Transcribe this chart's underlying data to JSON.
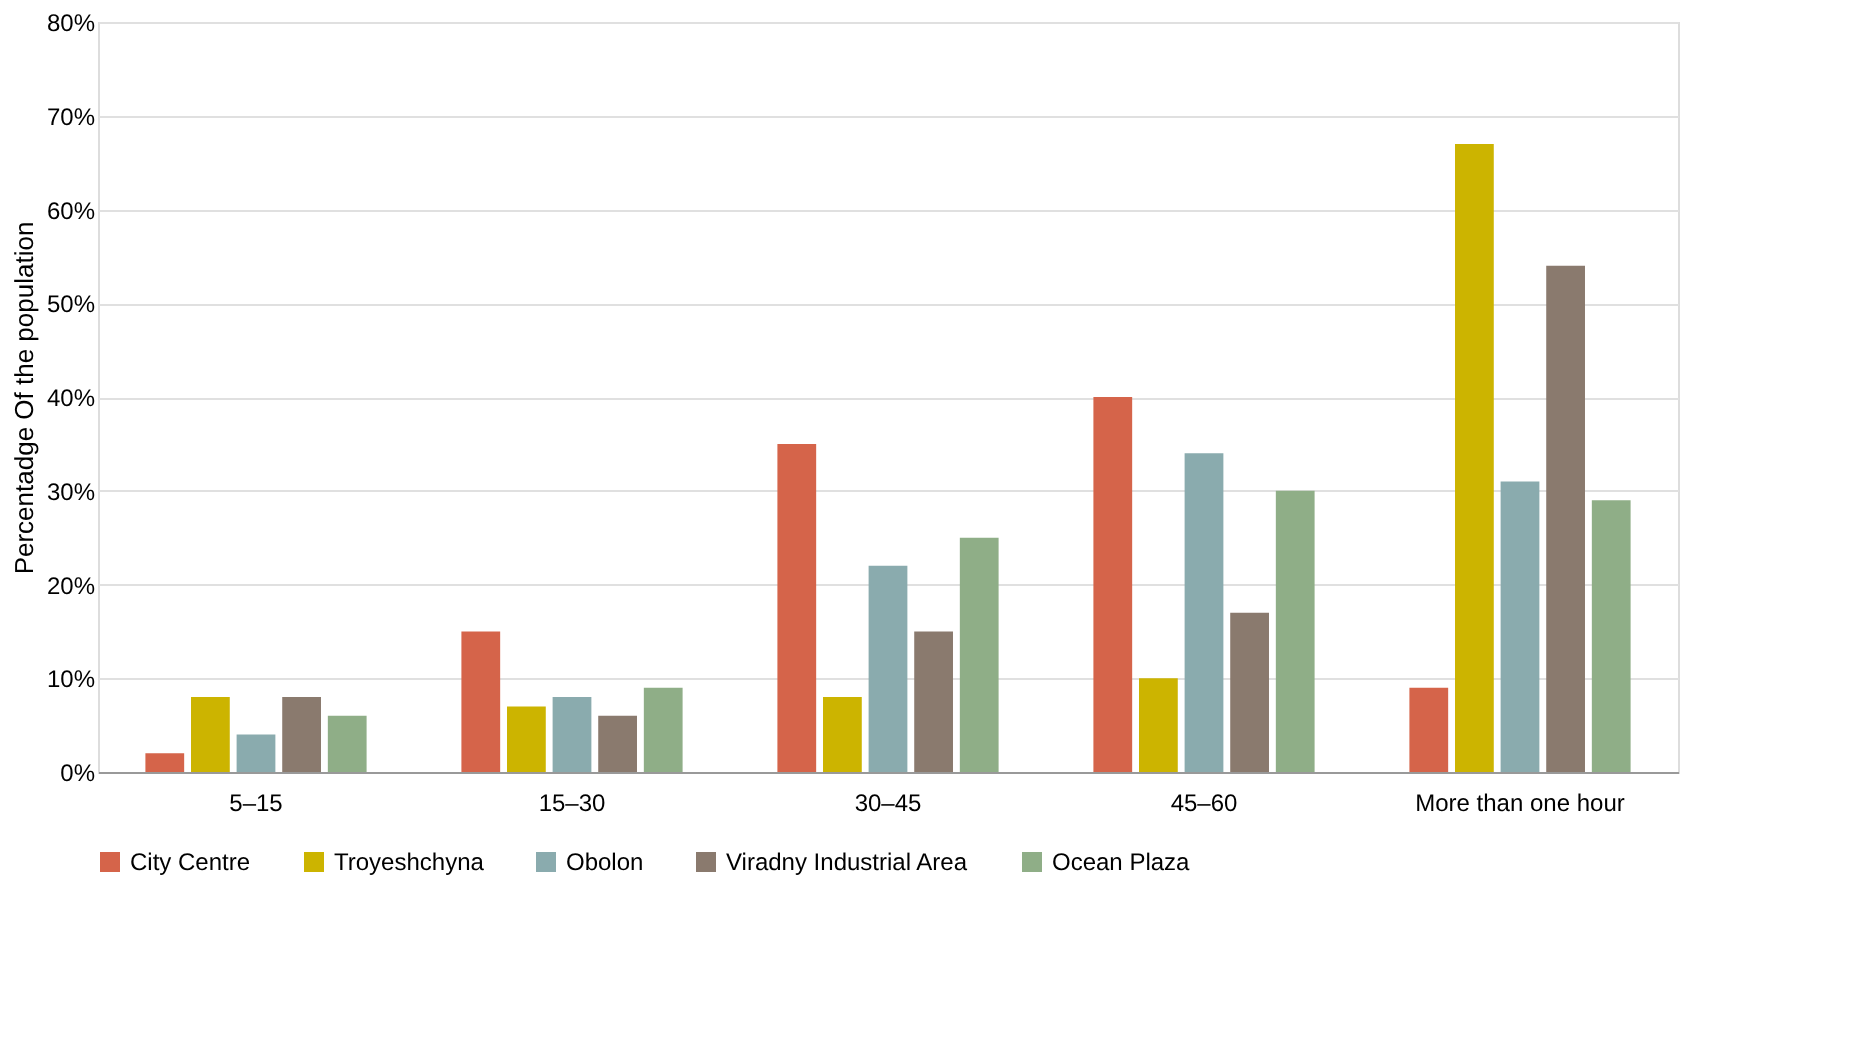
{
  "chart_data": {
    "type": "bar",
    "ylabel": "Percentadge Of the population",
    "categories": [
      "5–15",
      "15–30",
      "30–45",
      "45–60",
      "More than one hour"
    ],
    "series": [
      {
        "name": "City Centre",
        "color": "#d5644a",
        "values": [
          2,
          15,
          35,
          40,
          9
        ]
      },
      {
        "name": "Troyeshchyna",
        "color": "#ccb400",
        "values": [
          8,
          7,
          8,
          10,
          67
        ]
      },
      {
        "name": "Obolon",
        "color": "#8aabae",
        "values": [
          4,
          8,
          22,
          34,
          31
        ]
      },
      {
        "name": "Viradny Industrial Area",
        "color": "#8a7a6e",
        "values": [
          8,
          6,
          15,
          17,
          54
        ]
      },
      {
        "name": "Ocean Plaza",
        "color": "#8fae87",
        "values": [
          6,
          9,
          25,
          30,
          29
        ]
      }
    ],
    "ylim": [
      0,
      80
    ],
    "yticks": [
      {
        "value": 0,
        "label": "0%"
      },
      {
        "value": 10,
        "label": "10%"
      },
      {
        "value": 20,
        "label": "20%"
      },
      {
        "value": 30,
        "label": "30%"
      },
      {
        "value": 40,
        "label": "40%"
      },
      {
        "value": 50,
        "label": "50%"
      },
      {
        "value": 60,
        "label": "60%"
      },
      {
        "value": 70,
        "label": "70%"
      },
      {
        "value": 80,
        "label": "80%"
      }
    ],
    "grid": "y",
    "legend": "bottom"
  }
}
